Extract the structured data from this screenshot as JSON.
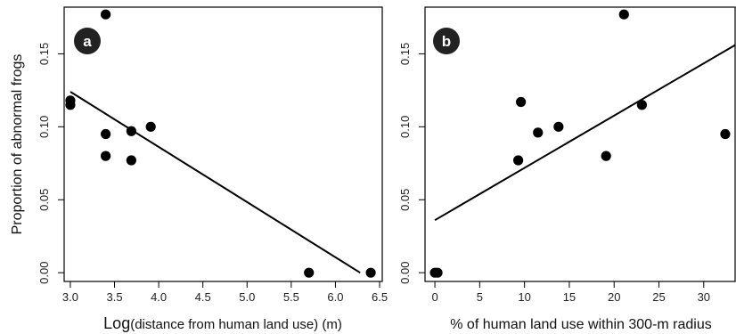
{
  "figure": {
    "ylabel": "Proportion of abnormal frogs"
  },
  "chart_data": [
    {
      "type": "scatter",
      "panel_label": "a",
      "xlabel_prefix": "Log",
      "xlabel_rest": "(distance from human land use) (m)",
      "ylabel": "Proportion of abnormal frogs",
      "xlim": [
        2.93,
        6.53
      ],
      "ylim": [
        -0.006,
        0.182
      ],
      "x_ticks": [
        "3.0",
        "3.5",
        "4.0",
        "4.5",
        "5.0",
        "5.5",
        "6.0",
        "6.5"
      ],
      "x_tick_values": [
        3.0,
        3.5,
        4.0,
        4.5,
        5.0,
        5.5,
        6.0,
        6.5
      ],
      "y_ticks": [
        "0.00",
        "0.05",
        "0.10",
        "0.15"
      ],
      "y_tick_values": [
        0.0,
        0.05,
        0.1,
        0.15
      ],
      "points": [
        {
          "x": 3.0,
          "y": 0.115
        },
        {
          "x": 3.0,
          "y": 0.118
        },
        {
          "x": 3.4,
          "y": 0.177
        },
        {
          "x": 3.4,
          "y": 0.095
        },
        {
          "x": 3.4,
          "y": 0.08
        },
        {
          "x": 3.69,
          "y": 0.097
        },
        {
          "x": 3.69,
          "y": 0.077
        },
        {
          "x": 3.91,
          "y": 0.1
        },
        {
          "x": 5.7,
          "y": 0.0
        },
        {
          "x": 6.4,
          "y": 0.0
        }
      ],
      "fit_line": {
        "x": [
          3.0,
          6.28
        ],
        "y": [
          0.124,
          0.0
        ]
      },
      "grid": false
    },
    {
      "type": "scatter",
      "panel_label": "b",
      "xlabel": "% of human land use within 300-m radius",
      "xlim": [
        -1.1,
        33.5
      ],
      "ylim": [
        -0.006,
        0.182
      ],
      "x_ticks": [
        "0",
        "5",
        "10",
        "15",
        "20",
        "25",
        "30"
      ],
      "x_tick_values": [
        0,
        5,
        10,
        15,
        20,
        25,
        30
      ],
      "y_ticks": [
        "0.00",
        "0.05",
        "0.10",
        "0.15"
      ],
      "y_tick_values": [
        0.0,
        0.05,
        0.1,
        0.15
      ],
      "points": [
        {
          "x": 0.0,
          "y": 0.0
        },
        {
          "x": 0.3,
          "y": 0.0
        },
        {
          "x": 9.3,
          "y": 0.077
        },
        {
          "x": 9.6,
          "y": 0.117
        },
        {
          "x": 11.5,
          "y": 0.096
        },
        {
          "x": 13.8,
          "y": 0.1
        },
        {
          "x": 19.1,
          "y": 0.08
        },
        {
          "x": 21.1,
          "y": 0.177
        },
        {
          "x": 23.1,
          "y": 0.115
        },
        {
          "x": 32.4,
          "y": 0.095
        }
      ],
      "fit_line": {
        "x": [
          0.0,
          33.5
        ],
        "y": [
          0.036,
          0.156
        ]
      },
      "grid": false
    }
  ]
}
